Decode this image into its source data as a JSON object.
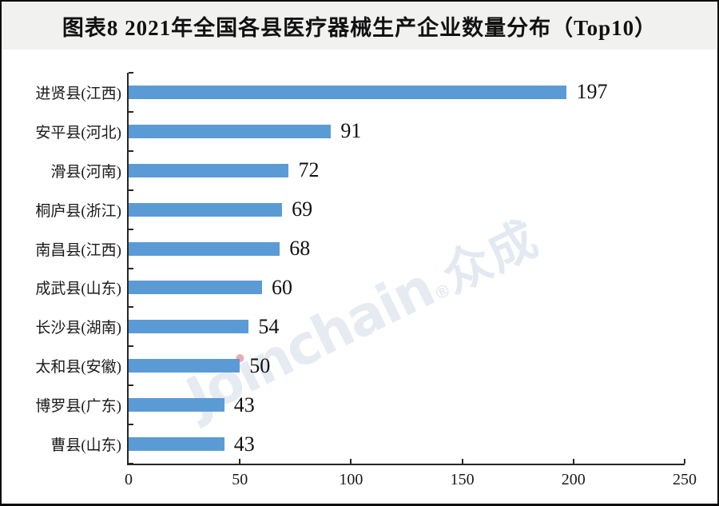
{
  "title": {
    "text": "图表8  2021年全国各县医疗器械生产企业数量分布（Top10）"
  },
  "watermark": {
    "full_text": "Joinchain®众成",
    "prefix": "Jo",
    "dotless_i": "ı",
    "rest": "nchain",
    "reg_mark": "®",
    "cjk": "众成"
  },
  "chart_data": {
    "type": "bar",
    "orientation": "horizontal",
    "title": "图表8  2021年全国各县医疗器械生产企业数量分布（Top10）",
    "categories": [
      "进贤县(江西)",
      "安平县(河北)",
      "滑县(河南)",
      "桐庐县(浙江)",
      "南昌县(江西)",
      "成武县(山东)",
      "长沙县(湖南)",
      "太和县(安徽)",
      "博罗县(广东)",
      "曹县(山东)"
    ],
    "values": [
      197,
      91,
      72,
      69,
      68,
      60,
      54,
      50,
      43,
      43
    ],
    "value_labels_shown": true,
    "xlabel": "",
    "ylabel": "",
    "xlim": [
      0,
      250
    ],
    "x_ticks": [
      0,
      50,
      100,
      150,
      200,
      250
    ],
    "grid": false,
    "legend_position": "none",
    "bar_color": "#5b9bd5",
    "axis_color": "#262626",
    "title_band_color": "#f1f1f0"
  }
}
